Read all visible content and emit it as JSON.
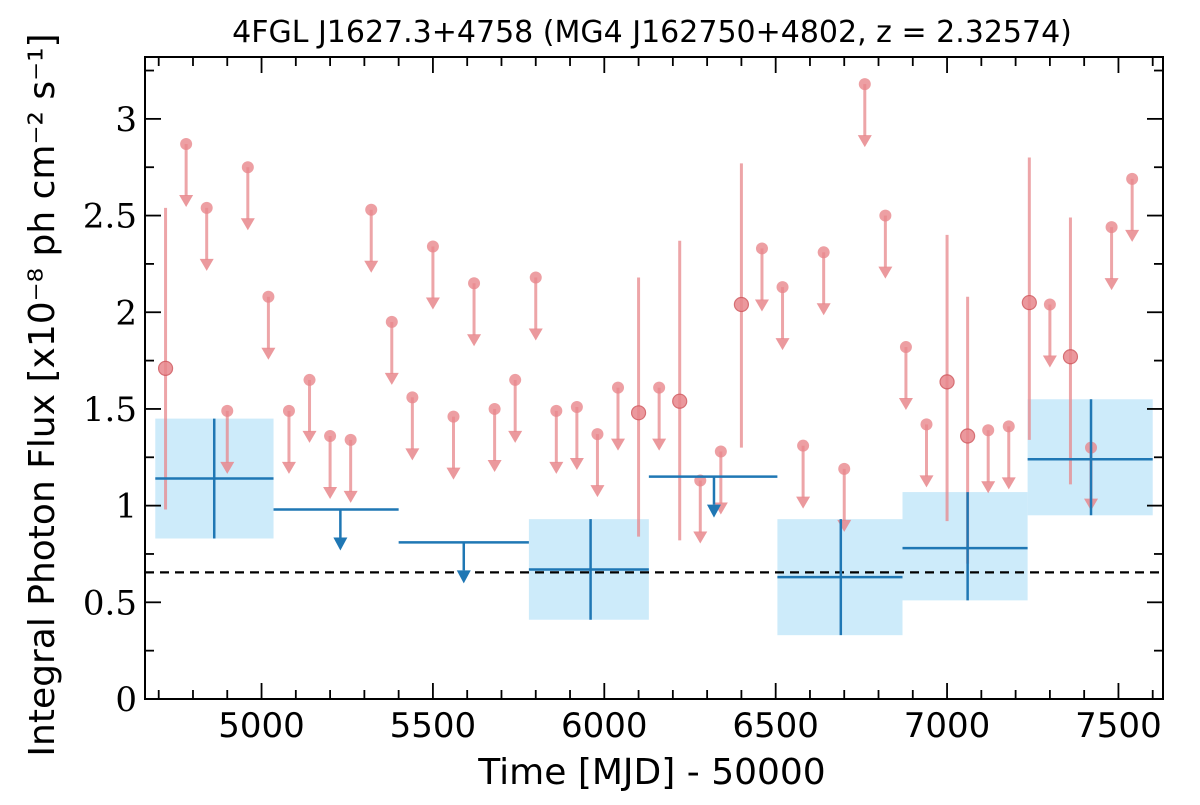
{
  "colors": {
    "long_bin": "#1f77b4",
    "long_bin_band": "#cdebfa",
    "short_bin": "#e8878c",
    "reference_line": "#000000"
  },
  "chart_data": {
    "type": "scatter",
    "title": "4FGL J1627.3+4758 (MG4 J162750+4802, z = 2.32574)",
    "xlabel": "Time [MJD] - 50000",
    "ylabel": "Integral Photon Flux [x10⁻⁸ ph cm⁻² s⁻¹]",
    "xlim": [
      4660,
      7630
    ],
    "ylim": [
      0,
      3.32
    ],
    "xticks": [
      5000,
      5500,
      6000,
      6500,
      7000,
      7500
    ],
    "yticks": [
      0,
      0.5,
      1,
      1.5,
      2,
      2.5,
      3
    ],
    "ytick_labels": [
      "0",
      "0.5",
      "1",
      "1.5",
      "2",
      "2.5",
      "3"
    ],
    "mean_flux": 0.655,
    "long_bins": [
      {
        "x": 4862,
        "x_lo": 4690,
        "x_hi": 5035,
        "y": 1.14,
        "y_lo": 0.83,
        "y_hi": 1.45,
        "upper_limit": false
      },
      {
        "x": 5230,
        "x_lo": 5035,
        "x_hi": 5400,
        "y": 0.98,
        "upper_limit": true
      },
      {
        "x": 5590,
        "x_lo": 5400,
        "x_hi": 5780,
        "y": 0.81,
        "upper_limit": true
      },
      {
        "x": 5960,
        "x_lo": 5780,
        "x_hi": 6130,
        "y": 0.67,
        "y_lo": 0.41,
        "y_hi": 0.93,
        "upper_limit": false
      },
      {
        "x": 6320,
        "x_lo": 6130,
        "x_hi": 6505,
        "y": 1.15,
        "upper_limit": true
      },
      {
        "x": 6690,
        "x_lo": 6505,
        "x_hi": 6870,
        "y": 0.63,
        "y_lo": 0.33,
        "y_hi": 0.93,
        "upper_limit": false
      },
      {
        "x": 7060,
        "x_lo": 6870,
        "x_hi": 7235,
        "y": 0.78,
        "y_lo": 0.51,
        "y_hi": 1.07,
        "upper_limit": false
      },
      {
        "x": 7420,
        "x_lo": 7235,
        "x_hi": 7600,
        "y": 1.24,
        "y_lo": 0.95,
        "y_hi": 1.55,
        "upper_limit": false
      }
    ],
    "short_bins": [
      {
        "x": 4720,
        "y": 1.71,
        "y_lo": 0.98,
        "y_hi": 2.54,
        "upper_limit": false
      },
      {
        "x": 4780,
        "y": 2.87,
        "upper_limit": true
      },
      {
        "x": 4840,
        "y": 2.54,
        "upper_limit": true
      },
      {
        "x": 4900,
        "y": 1.49,
        "upper_limit": true
      },
      {
        "x": 4960,
        "y": 2.75,
        "upper_limit": true
      },
      {
        "x": 5020,
        "y": 2.08,
        "upper_limit": true
      },
      {
        "x": 5080,
        "y": 1.49,
        "upper_limit": true
      },
      {
        "x": 5140,
        "y": 1.65,
        "upper_limit": true
      },
      {
        "x": 5200,
        "y": 1.36,
        "upper_limit": true
      },
      {
        "x": 5260,
        "y": 1.34,
        "upper_limit": true
      },
      {
        "x": 5320,
        "y": 2.53,
        "upper_limit": true
      },
      {
        "x": 5380,
        "y": 1.95,
        "upper_limit": true
      },
      {
        "x": 5440,
        "y": 1.56,
        "upper_limit": true
      },
      {
        "x": 5500,
        "y": 2.34,
        "upper_limit": true
      },
      {
        "x": 5560,
        "y": 1.46,
        "upper_limit": true
      },
      {
        "x": 5620,
        "y": 2.15,
        "upper_limit": true
      },
      {
        "x": 5680,
        "y": 1.5,
        "upper_limit": true
      },
      {
        "x": 5740,
        "y": 1.65,
        "upper_limit": true
      },
      {
        "x": 5800,
        "y": 2.18,
        "upper_limit": true
      },
      {
        "x": 5860,
        "y": 1.49,
        "upper_limit": true
      },
      {
        "x": 5920,
        "y": 1.51,
        "upper_limit": true
      },
      {
        "x": 5980,
        "y": 1.37,
        "upper_limit": true
      },
      {
        "x": 6040,
        "y": 1.61,
        "upper_limit": true
      },
      {
        "x": 6100,
        "y": 1.48,
        "y_lo": 0.84,
        "y_hi": 2.18,
        "upper_limit": false
      },
      {
        "x": 6160,
        "y": 1.61,
        "upper_limit": true
      },
      {
        "x": 6220,
        "y": 1.54,
        "y_lo": 0.82,
        "y_hi": 2.37,
        "upper_limit": false
      },
      {
        "x": 6280,
        "y": 1.13,
        "upper_limit": true
      },
      {
        "x": 6340,
        "y": 1.28,
        "upper_limit": true
      },
      {
        "x": 6400,
        "y": 2.04,
        "y_lo": 1.3,
        "y_hi": 2.77,
        "upper_limit": false
      },
      {
        "x": 6460,
        "y": 2.33,
        "upper_limit": true
      },
      {
        "x": 6520,
        "y": 2.13,
        "upper_limit": true
      },
      {
        "x": 6580,
        "y": 1.31,
        "upper_limit": true
      },
      {
        "x": 6640,
        "y": 2.31,
        "upper_limit": true
      },
      {
        "x": 6700,
        "y": 1.19,
        "upper_limit": true
      },
      {
        "x": 6760,
        "y": 3.18,
        "upper_limit": true
      },
      {
        "x": 6820,
        "y": 2.5,
        "upper_limit": true
      },
      {
        "x": 6880,
        "y": 1.82,
        "upper_limit": true
      },
      {
        "x": 6940,
        "y": 1.42,
        "upper_limit": true
      },
      {
        "x": 7000,
        "y": 1.64,
        "y_lo": 0.92,
        "y_hi": 2.4,
        "upper_limit": false
      },
      {
        "x": 7060,
        "y": 1.36,
        "y_lo": 0.7,
        "y_hi": 2.08,
        "upper_limit": false
      },
      {
        "x": 7120,
        "y": 1.39,
        "upper_limit": true
      },
      {
        "x": 7180,
        "y": 1.41,
        "upper_limit": true
      },
      {
        "x": 7240,
        "y": 2.05,
        "y_lo": 1.34,
        "y_hi": 2.8,
        "upper_limit": false
      },
      {
        "x": 7300,
        "y": 2.04,
        "upper_limit": true
      },
      {
        "x": 7360,
        "y": 1.77,
        "y_lo": 1.11,
        "y_hi": 2.49,
        "upper_limit": false
      },
      {
        "x": 7420,
        "y": 1.3,
        "upper_limit": true
      },
      {
        "x": 7480,
        "y": 2.44,
        "upper_limit": true
      },
      {
        "x": 7540,
        "y": 2.69,
        "upper_limit": true
      }
    ]
  }
}
